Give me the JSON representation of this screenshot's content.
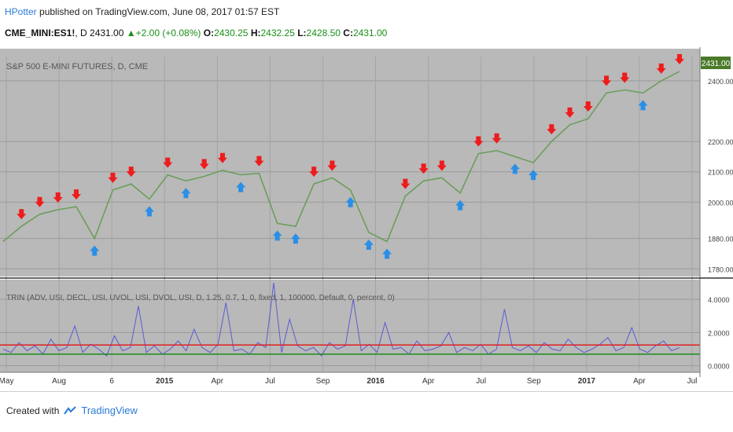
{
  "header": {
    "author": "HPotter",
    "published_text": "published on TradingView.com, June 08, 2017 01:57 EST"
  },
  "symbol_line": {
    "symbol": "CME_MINI:ES1!",
    "interval": ", D",
    "price": "2431.00",
    "change": "+2.00 (+0.08%)",
    "o_label": "O:",
    "o_value": "2430.25",
    "h_label": "H:",
    "h_value": "2432.25",
    "l_label": "L:",
    "l_value": "2428.50",
    "c_label": "C:",
    "c_value": "2431.00"
  },
  "main_pane": {
    "title": "S&P 500 E-MINI FUTURES, D, CME",
    "last_price_tag": "2431.00"
  },
  "indicator_pane": {
    "title": "TRIN (ADV, USI, DECL, USI, UVOL, USI, DVOL, USI, D, 1.25, 0.7, 1, 0, fixed, 1, 100000, Default, 0, percent, 0)"
  },
  "footer": {
    "created_with": "Created with",
    "brand": "TradingView"
  },
  "colors": {
    "pane_background": "#b9b9b9",
    "price_line": "#6b9e5a",
    "down_marker": "#ee1c1c",
    "up_marker": "#2a8fe6",
    "trin_line": "#5a5ad6",
    "upper_level": "#e02020",
    "lower_level": "#1a8f1a",
    "last_price_tag": "#4a7a2a"
  },
  "chart_data": [
    {
      "type": "line",
      "title": "S&P 500 E-MINI FUTURES, D, CME",
      "x_ticks": [
        "May",
        "Aug",
        "6",
        "2015",
        "Apr",
        "Jul",
        "Sep",
        "2016",
        "Apr",
        "Jul",
        "Sep",
        "2017",
        "Apr",
        "Jul"
      ],
      "y_ticks": [
        "1780.00",
        "1880.00",
        "2000.00",
        "2100.00",
        "2200.00",
        "2400.00"
      ],
      "ylim": [
        1760,
        2480
      ],
      "x": [
        "2014-05",
        "2014-06",
        "2014-07",
        "2014-08",
        "2014-09",
        "2014-10",
        "2014-11",
        "2014-12",
        "2015-01",
        "2015-02",
        "2015-03",
        "2015-04",
        "2015-05",
        "2015-06",
        "2015-07",
        "2015-08",
        "2015-09",
        "2015-10",
        "2015-11",
        "2015-12",
        "2016-01",
        "2016-02",
        "2016-03",
        "2016-04",
        "2016-05",
        "2016-06",
        "2016-07",
        "2016-08",
        "2016-09",
        "2016-10",
        "2016-11",
        "2016-12",
        "2017-01",
        "2017-02",
        "2017-03",
        "2017-04",
        "2017-05",
        "2017-06"
      ],
      "series": [
        {
          "values": [
            1870,
            1920,
            1960,
            1975,
            1985,
            1880,
            2040,
            2060,
            2010,
            2090,
            2070,
            2085,
            2105,
            2090,
            2095,
            1930,
            1920,
            2060,
            2080,
            2040,
            1900,
            1870,
            2020,
            2070,
            2080,
            2030,
            2160,
            2170,
            2150,
            2130,
            2200,
            2255,
            2275,
            2360,
            2370,
            2360,
            2400,
            2431
          ]
        }
      ],
      "grid": true
    },
    {
      "type": "line",
      "title": "TRIN (ADV, USI, DECL, USI, UVOL, USI, DVOL, USI, D, 1.25, 0.7, 1, 0, fixed, 1, 100000, Default, 0, percent, 0)",
      "y_ticks": [
        "0.0000",
        "2.0000",
        "4.0000"
      ],
      "ylim": [
        -0.3,
        5.0
      ],
      "levels": [
        1.25,
        0.7
      ],
      "series": [
        {
          "values": [
            1.0,
            0.8,
            1.4,
            0.9,
            1.2,
            0.7,
            1.6,
            0.9,
            1.1,
            2.4,
            0.8,
            1.3,
            1.0,
            0.6,
            1.8,
            0.9,
            1.1,
            3.6,
            0.8,
            1.2,
            0.7,
            1.0,
            1.5,
            0.9,
            2.2,
            1.1,
            0.8,
            1.3,
            3.8,
            0.9,
            1.0,
            0.7,
            1.4,
            1.1,
            5.0,
            0.8,
            2.8,
            1.2,
            0.9,
            1.1,
            0.6,
            1.4,
            1.0,
            1.2,
            4.0,
            0.9,
            1.3,
            0.8,
            2.6,
            1.0,
            1.1,
            0.7,
            1.5,
            0.9,
            1.0,
            1.2,
            2.0,
            0.8,
            1.1,
            0.9,
            1.3,
            0.7,
            1.0,
            3.4,
            1.1,
            0.9,
            1.2,
            0.8,
            1.4,
            1.0,
            0.9,
            1.6,
            1.1,
            0.8,
            1.0,
            1.3,
            1.7,
            0.9,
            1.1,
            2.3,
            1.0,
            0.8,
            1.2,
            1.5,
            0.9,
            1.1
          ]
        }
      ],
      "grid": true
    }
  ]
}
